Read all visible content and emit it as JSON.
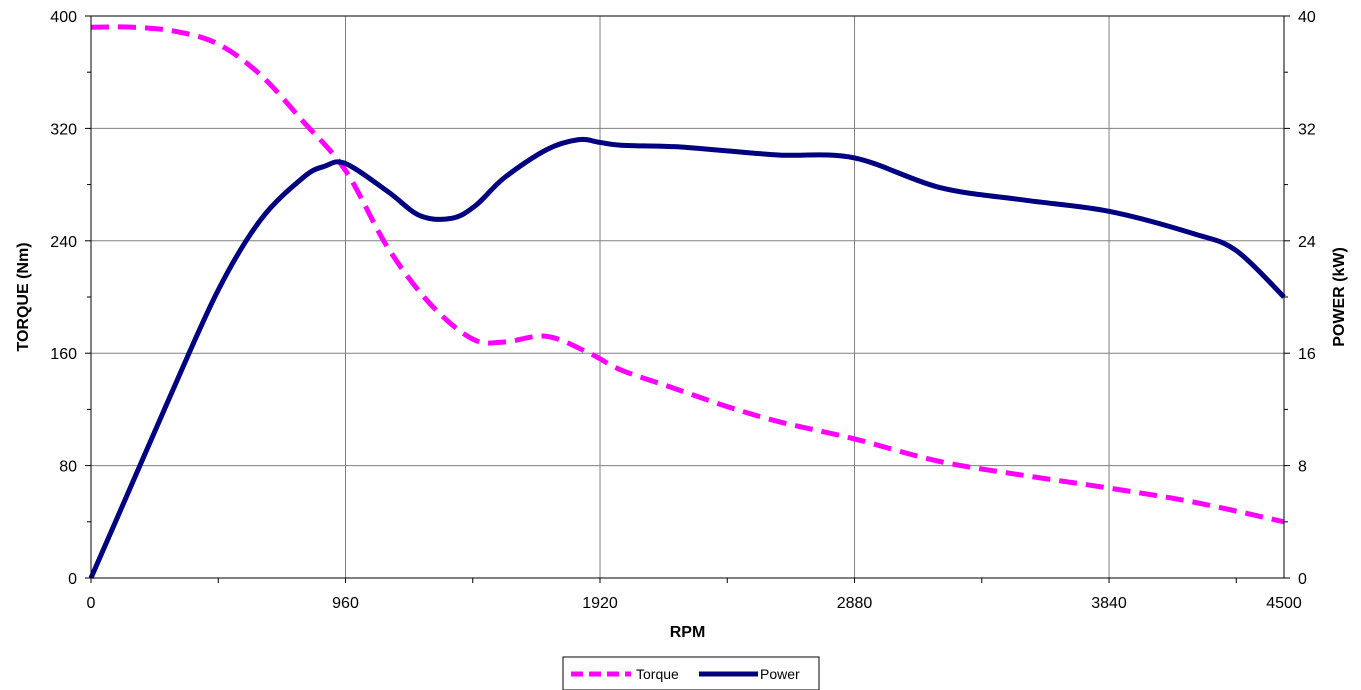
{
  "chart_data": {
    "type": "line",
    "title": "",
    "xlabel": "RPM",
    "ylabel": "TORQUE (Nm)",
    "y2label": "POWER (kW)",
    "xlim": [
      0,
      4500
    ],
    "ylim": [
      0,
      400
    ],
    "y2lim": [
      0,
      40
    ],
    "x_ticks": [
      0,
      960,
      1920,
      2880,
      3840,
      4500
    ],
    "x_minor_ticks": [
      0,
      480,
      960,
      1440,
      1920,
      2400,
      2880,
      3360,
      3840,
      4320
    ],
    "y_ticks": [
      0,
      80,
      160,
      240,
      320,
      400
    ],
    "y2_ticks": [
      0,
      8,
      16,
      24,
      32,
      40
    ],
    "grid": true,
    "legend_position": "bottom-center",
    "colors": {
      "torque": "#ff00ff",
      "power": "#000080",
      "grid": "#808080"
    },
    "series": [
      {
        "name": "Torque",
        "axis": "left",
        "style": "dashed",
        "x": [
          0,
          160,
          320,
          480,
          640,
          800,
          960,
          1120,
          1280,
          1440,
          1560,
          1720,
          1880,
          2000,
          2200,
          2400,
          2600,
          2880,
          3200,
          3520,
          3840,
          4160,
          4500
        ],
        "y": [
          392,
          392,
          389,
          380,
          358,
          325,
          290,
          235,
          195,
          170,
          168,
          172,
          160,
          148,
          135,
          122,
          111,
          99,
          83,
          73,
          64,
          54,
          40
        ]
      },
      {
        "name": "Power",
        "axis": "right",
        "style": "solid",
        "x": [
          0,
          150,
          300,
          480,
          640,
          800,
          880,
          960,
          1120,
          1240,
          1360,
          1450,
          1560,
          1720,
          1840,
          1920,
          2000,
          2200,
          2400,
          2600,
          2880,
          3200,
          3520,
          3840,
          4160,
          4320,
          4500
        ],
        "y": [
          0,
          6.5,
          13,
          20.5,
          25.5,
          28.5,
          29.3,
          29.5,
          27.5,
          25.8,
          25.6,
          26.5,
          28.5,
          30.5,
          31.2,
          31.0,
          30.8,
          30.7,
          30.4,
          30.1,
          29.9,
          27.8,
          26.9,
          26.1,
          24.5,
          23.3,
          20.0
        ]
      }
    ]
  }
}
